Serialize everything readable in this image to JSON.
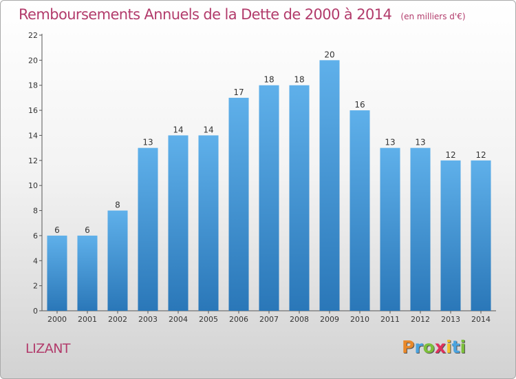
{
  "title": "Remboursements Annuels de la Dette de 2000 à 2014",
  "unit": "(en milliers d'€)",
  "commune": "LIZANT",
  "logo": {
    "letters": [
      "P",
      "r",
      "o",
      "x",
      "i",
      "t",
      "i"
    ],
    "colors": [
      "#e8882a",
      "#4aa3df",
      "#7cbf3b",
      "#e0305c",
      "#f2c12e",
      "#4aa3df",
      "#7cbf3b"
    ]
  },
  "colors": {
    "bar_top": "#5fb0ea",
    "bar_bottom": "#2a77b8",
    "title": "#b23b6b"
  },
  "chart_data": {
    "type": "bar",
    "categories": [
      "2000",
      "2001",
      "2002",
      "2003",
      "2004",
      "2005",
      "2006",
      "2007",
      "2008",
      "2009",
      "2010",
      "2011",
      "2012",
      "2013",
      "2014"
    ],
    "values": [
      6,
      6,
      8,
      13,
      14,
      14,
      17,
      18,
      18,
      20,
      16,
      13,
      13,
      12,
      12
    ],
    "ylim": [
      0,
      22
    ],
    "yticks": [
      0,
      2,
      4,
      6,
      8,
      10,
      12,
      14,
      16,
      18,
      20,
      22
    ],
    "grid": false,
    "legend": "none"
  }
}
